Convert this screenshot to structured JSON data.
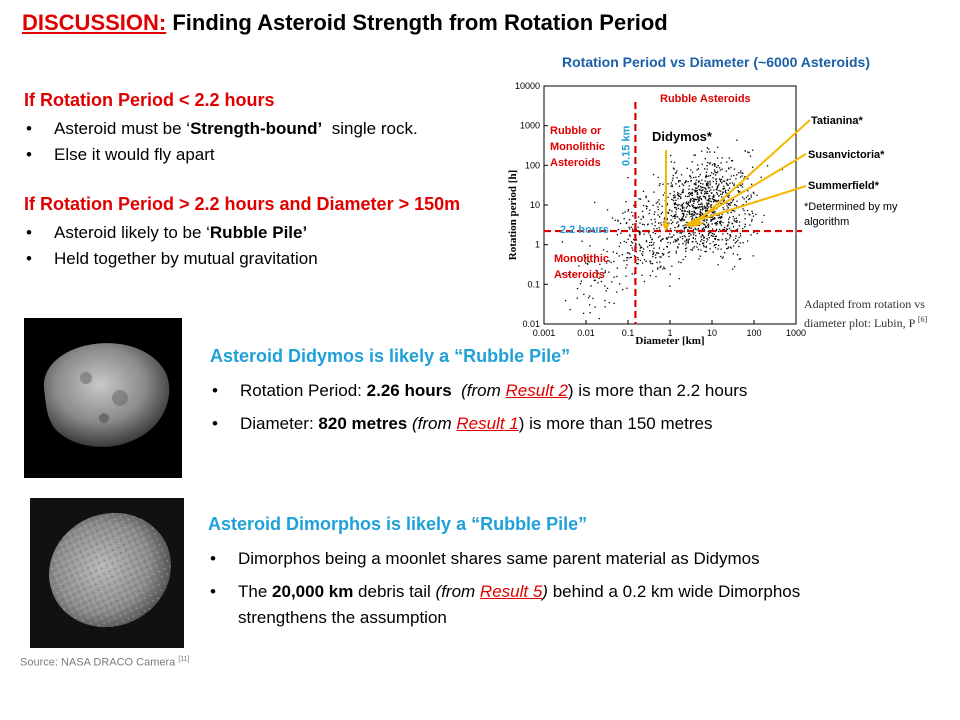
{
  "title": {
    "lead": "DISCUSSION:",
    "rest": " Finding Asteroid Strength from Rotation Period"
  },
  "section1": {
    "heading": "If Rotation Period < 2.2 hours",
    "bullets": [
      {
        "pre": "Asteroid must be ‘",
        "bold": "Strength-bound’",
        "post": "  single rock."
      },
      {
        "text": "Else it would fly apart"
      }
    ]
  },
  "section2": {
    "heading": "If Rotation Period > 2.2 hours and Diameter > 150m",
    "bullets": [
      {
        "pre": "Asteroid likely to be ‘",
        "bold": "Rubble Pile’"
      },
      {
        "text": "Held together by mutual gravitation"
      }
    ]
  },
  "didymos": {
    "heading": "Asteroid Didymos is likely a “Rubble Pile”",
    "b1": {
      "pre": "Rotation Period: ",
      "bold": "2.26 hours",
      "italic_pre": "  (from ",
      "ref": "Result 2",
      "post": ") is more than 2.2 hours"
    },
    "b2": {
      "pre": "Diameter: ",
      "bold": "820 metres",
      "italic_pre": " (from ",
      "ref": "Result 1",
      "post": ") is more than 150 metres"
    }
  },
  "dimorphos": {
    "heading": "Asteroid Dimorphos is likely a “Rubble Pile”",
    "b1": {
      "text": "Dimorphos being a moonlet shares same parent material as Didymos"
    },
    "b2": {
      "pre": "The ",
      "bold": "20,000 km",
      "mid": " debris tail ",
      "italic_pre": "(from ",
      "ref": "Result 5",
      "italic_post": ")",
      "post": " behind a 0.2 km wide Dimorphos",
      "line2": "strengthens the assumption"
    }
  },
  "source": {
    "text": "Source: NASA DRACO Camera ",
    "ref": "[11]"
  },
  "adapted": {
    "line1": "Adapted from rotation vs",
    "line2": "diameter plot: Lubin, P ",
    "ref": "[6]"
  },
  "chart_data": {
    "type": "scatter",
    "title": "Rotation Period vs Diameter (~6000 Asteroids)",
    "xlabel": "Diameter [km]",
    "ylabel": "Rotation period [h]",
    "x_scale": "log",
    "y_scale": "log",
    "xlim": [
      0.001,
      1000
    ],
    "ylim": [
      0.01,
      10000
    ],
    "x_ticks": [
      "0.001",
      "0.01",
      "0.1",
      "1",
      "10",
      "100",
      "1000"
    ],
    "y_ticks": [
      "10000",
      "1000",
      "100",
      "10",
      "1",
      "0.1",
      "0.01"
    ],
    "grid": false,
    "threshold_period_h": 2.2,
    "threshold_period_label": "2.2 hours",
    "threshold_diameter_km": 0.15,
    "threshold_diameter_label": "0.15 km",
    "region_labels": {
      "rubble": "Rubble Asteroids",
      "rubble_or_monolithic": [
        "Rubble or",
        "Monolithic",
        "Asteroids"
      ],
      "monolithic": [
        "Monolithic",
        "Asteroids"
      ]
    },
    "annotations": [
      {
        "label": "Didymos*",
        "x": 0.8,
        "y": 2.3
      },
      {
        "label": "Tatianina*",
        "x": 4,
        "y": 3
      },
      {
        "label": "Susanvictoria*",
        "x": 3,
        "y": 3
      },
      {
        "label": "Summerfield*",
        "x": 2.5,
        "y": 3
      }
    ],
    "footnote": [
      "*Determined by my",
      "algorithm"
    ],
    "colors": {
      "threshold": "#dd0000",
      "points": "#000000",
      "arrows": "#f5b800",
      "label_blue": "#1fa0d8",
      "title": "#1a5fa8"
    }
  }
}
